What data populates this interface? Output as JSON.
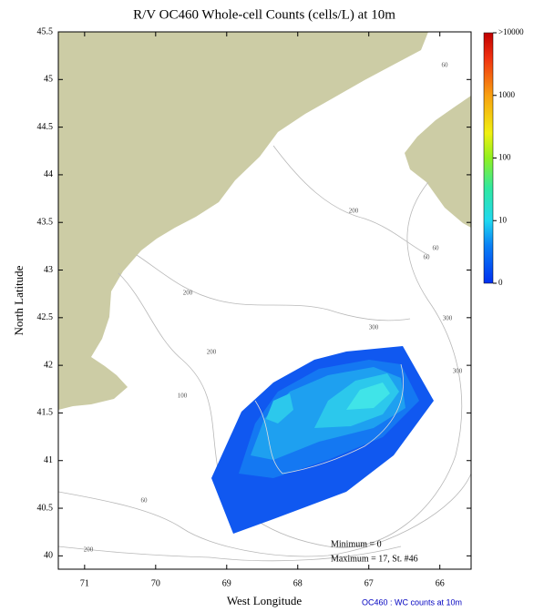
{
  "title": "R/V OC460 Whole-cell Counts (cells/L) at 10m",
  "x_axis": {
    "label": "West Longitude",
    "lim": [
      71.37,
      65.56
    ],
    "ticks": [
      71,
      70,
      69,
      68,
      67,
      66
    ]
  },
  "y_axis": {
    "label": "North Latitude",
    "lim": [
      39.86,
      45.5
    ],
    "ticks": [
      45.5,
      45,
      44.5,
      44,
      43.5,
      43,
      42.5,
      42,
      41.5,
      41,
      40.5,
      40
    ]
  },
  "colorbar": {
    "labels": [
      ">10000",
      "1000",
      "100",
      "10",
      "0"
    ]
  },
  "contour_labels": [
    "60",
    "200",
    "60",
    "60",
    "200",
    "300",
    "300",
    "200",
    "100",
    "300",
    "60",
    "200"
  ],
  "annotations": {
    "minimum": "Minimum = 0",
    "maximum": "Maximum = 17, St. #46"
  },
  "footer": "OC460 : WC counts at 10m"
}
